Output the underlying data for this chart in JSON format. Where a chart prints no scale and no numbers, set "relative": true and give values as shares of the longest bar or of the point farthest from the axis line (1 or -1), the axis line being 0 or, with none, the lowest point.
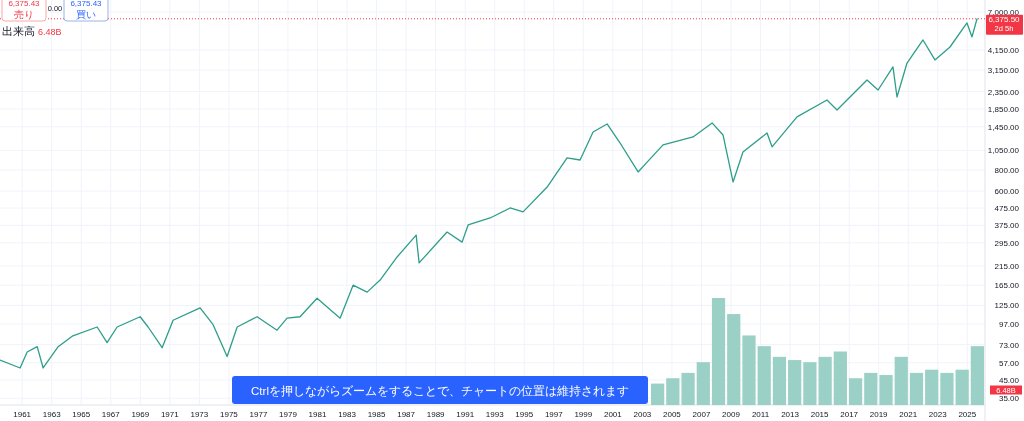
{
  "chart_data": [
    {
      "type": "line",
      "log": "y",
      "grid": true,
      "x": [
        1959.5,
        1960.86,
        1961.34,
        1962.02,
        1962.42,
        1963.44,
        1964.39,
        1966.08,
        1966.75,
        1967.43,
        1968.99,
        1969.53,
        1970.48,
        1971.22,
        1973.05,
        1973.93,
        1974.88,
        1975.56,
        1976.91,
        1978.26,
        1978.94,
        1979.82,
        1980.97,
        1982.53,
        1983.41,
        1984.36,
        1985.24,
        1986.39,
        1987.68,
        1987.88,
        1989.77,
        1990.79,
        1991.2,
        1992.69,
        1994.04,
        1994.92,
        1996.55,
        1997.9,
        1998.78,
        1999.66,
        2000.61,
        2001.49,
        2002.71,
        2003.32,
        2004.4,
        2006.43,
        2007.72,
        2008.46,
        2009.14,
        2009.81,
        2011.44,
        2011.78,
        2013.47,
        2015.5,
        2016.18,
        2018.21,
        2018.96,
        2019.97,
        2020.24,
        2020.92,
        2022.0,
        2022.81,
        2023.83,
        2024.98,
        2025.32,
        2025.66
      ],
      "series": [
        {
          "color": "#2e9e8a",
          "values": [
            59,
            53,
            66,
            71,
            53,
            71,
            82,
            93,
            75,
            93,
            107,
            93,
            70,
            102,
            121,
            96,
            62,
            93,
            107,
            89,
            105,
            107,
            138,
            105,
            165,
            150,
            177,
            243,
            328,
            224,
            342,
            298,
            377,
            415,
            476,
            451,
            634,
            945,
            919,
            1349,
            1507,
            1160,
            780,
            893,
            1130,
            1260,
            1528,
            1296,
            680,
            1026,
            1331,
            1101,
            1659,
            2093,
            1826,
            2753,
            2401,
            3293,
            2181,
            3476,
            4768,
            3625,
            4330,
            6020,
            4970,
            6375.5
          ]
        }
      ],
      "xlim": [
        1959.5,
        2026.2
      ],
      "xticks": [
        1961,
        1963,
        1965,
        1967,
        1969,
        1971,
        1973,
        1975,
        1977,
        1979,
        1981,
        1983,
        1985,
        1987,
        1989,
        1991,
        1993,
        1995,
        1997,
        1999,
        2001,
        2003,
        2005,
        2007,
        2009,
        2011,
        2013,
        2015,
        2017,
        2019,
        2021,
        2023,
        2025
      ],
      "ylim": [
        31.9,
        8250
      ],
      "yticks": [
        {
          "value": 7000,
          "label": "7,000.00"
        },
        {
          "value": 4150,
          "label": "4,150.00"
        },
        {
          "value": 3150,
          "label": "3,150.00"
        },
        {
          "value": 2350,
          "label": "2,350.00"
        },
        {
          "value": 1850,
          "label": "1,850.00"
        },
        {
          "value": 1450,
          "label": "1,450.00"
        },
        {
          "value": 1050,
          "label": "1,050.00"
        },
        {
          "value": 800,
          "label": "800.00"
        },
        {
          "value": 600,
          "label": "600.00"
        },
        {
          "value": 475,
          "label": "475.00"
        },
        {
          "value": 375,
          "label": "375.00"
        },
        {
          "value": 295,
          "label": "295.00"
        },
        {
          "value": 215,
          "label": "215.00"
        },
        {
          "value": 165,
          "label": "165.00"
        },
        {
          "value": 125,
          "label": "125.00"
        },
        {
          "value": 97,
          "label": "97.00"
        },
        {
          "value": 73,
          "label": "73.00"
        },
        {
          "value": 57,
          "label": "57.00"
        },
        {
          "value": 45,
          "label": "45.00"
        },
        {
          "value": 35,
          "label": "35.00"
        }
      ],
      "ref_lines": [
        {
          "axis": "y",
          "value": 6375.5,
          "label": "6,375.50",
          "color": "#f23645",
          "line_style": "dotted"
        }
      ],
      "annotations": [
        "6,375.43",
        "売り",
        "0.00",
        "6,375.43",
        "買い",
        "出来高",
        "6.48B",
        "6.48B",
        "2d 5h",
        "Ctrlを押しながらズームをすることで、チャートの位置は維持されます"
      ]
    },
    {
      "type": "bar",
      "relative": true,
      "color": "#9bd0c6",
      "categories": [
        null,
        null,
        null,
        null,
        null,
        null,
        null,
        null,
        null,
        null,
        null,
        null,
        null,
        null,
        null,
        null,
        null,
        null,
        null,
        null,
        null,
        null
      ],
      "values": [
        0.2,
        0.25,
        0.3,
        0.4,
        1.0,
        0.85,
        0.65,
        0.55,
        0.45,
        0.42,
        0.4,
        0.45,
        0.5,
        0.25,
        0.3,
        0.28,
        0.45,
        0.3,
        0.33,
        0.3,
        0.33,
        0.55
      ]
    }
  ]
}
